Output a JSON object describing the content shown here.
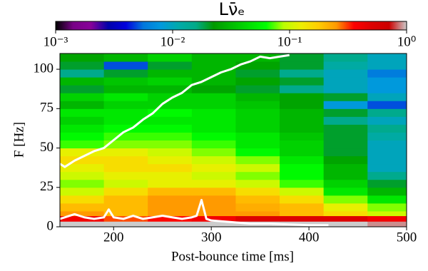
{
  "chart_data": {
    "type": "heatmap",
    "title": "Lν̄ₑ",
    "x_label": "Post-bounce time [ms]",
    "y_label": "F [Hz]",
    "xlim": [
      145,
      500
    ],
    "xticks": [
      200,
      300,
      400,
      500
    ],
    "ylim": [
      0,
      110
    ],
    "yticks": [
      0,
      25,
      50,
      75,
      100
    ],
    "xbins": [
      145,
      190,
      235,
      280,
      325,
      370,
      415,
      460,
      500
    ],
    "ybins": [
      0,
      3.5,
      7,
      10,
      15,
      20,
      25,
      30,
      35,
      40,
      45,
      50,
      55,
      60,
      65,
      70,
      75,
      80,
      85,
      90,
      95,
      100,
      105,
      110
    ],
    "z": [
      [
        1,
        1,
        1,
        1,
        1,
        1,
        1,
        0.9
      ],
      [
        0.4,
        0.3,
        0.35,
        0.4,
        0.5,
        0.5,
        0.5,
        0.4
      ],
      [
        0.25,
        0.2,
        0.25,
        0.25,
        0.25,
        0.2,
        0.15,
        0.1
      ],
      [
        0.2,
        0.2,
        0.25,
        0.25,
        0.22,
        0.2,
        0.12,
        0.08
      ],
      [
        0.15,
        0.2,
        0.25,
        0.25,
        0.2,
        0.15,
        0.08,
        0.05
      ],
      [
        0.1,
        0.15,
        0.2,
        0.2,
        0.15,
        0.1,
        0.05,
        0.03
      ],
      [
        0.08,
        0.1,
        0.12,
        0.12,
        0.1,
        0.07,
        0.04,
        0.02
      ],
      [
        0.1,
        0.12,
        0.12,
        0.1,
        0.08,
        0.06,
        0.03,
        0.015
      ],
      [
        0.12,
        0.15,
        0.15,
        0.12,
        0.1,
        0.06,
        0.03,
        0.01
      ],
      [
        0.15,
        0.15,
        0.12,
        0.1,
        0.08,
        0.05,
        0.025,
        0.01
      ],
      [
        0.12,
        0.12,
        0.1,
        0.08,
        0.06,
        0.04,
        0.02,
        0.01
      ],
      [
        0.07,
        0.08,
        0.08,
        0.07,
        0.05,
        0.04,
        0.02,
        0.01
      ],
      [
        0.06,
        0.07,
        0.07,
        0.06,
        0.05,
        0.035,
        0.02,
        0.012
      ],
      [
        0.05,
        0.06,
        0.06,
        0.05,
        0.04,
        0.03,
        0.02,
        0.015
      ],
      [
        0.04,
        0.05,
        0.05,
        0.05,
        0.04,
        0.03,
        0.015,
        0.01
      ],
      [
        0.05,
        0.05,
        0.06,
        0.05,
        0.04,
        0.03,
        0.02,
        0.015
      ],
      [
        0.03,
        0.04,
        0.04,
        0.04,
        0.035,
        0.025,
        0.008,
        0.005
      ],
      [
        0.04,
        0.05,
        0.04,
        0.04,
        0.03,
        0.025,
        0.02,
        0.01
      ],
      [
        0.02,
        0.03,
        0.03,
        0.025,
        0.02,
        0.015,
        0.01,
        0.008
      ],
      [
        0.03,
        0.035,
        0.04,
        0.03,
        0.025,
        0.02,
        0.01,
        0.008
      ],
      [
        0.015,
        0.02,
        0.03,
        0.03,
        0.02,
        0.015,
        0.01,
        0.006
      ],
      [
        0.02,
        0.005,
        0.02,
        0.03,
        0.025,
        0.02,
        0.012,
        0.01
      ],
      [
        0.025,
        0.03,
        0.04,
        0.03,
        0.03,
        0.02,
        0.015,
        0.01
      ]
    ],
    "clim": [
      0.001,
      1
    ],
    "cticks": [
      {
        "value": 0.001,
        "label": "10⁻³"
      },
      {
        "value": 0.01,
        "label": "10⁻²"
      },
      {
        "value": 0.1,
        "label": "10⁻¹"
      },
      {
        "value": 1,
        "label": "10⁰"
      }
    ],
    "colormap": [
      "#000000",
      "#780087",
      "#880099",
      "#0000aa",
      "#0000dd",
      "#0077dd",
      "#0099dd",
      "#00aaaa",
      "#00aa88",
      "#009900",
      "#00bb00",
      "#00dd00",
      "#00ff00",
      "#bbff00",
      "#eeee00",
      "#ffcc00",
      "#ff9900",
      "#ff0000",
      "#dd0000",
      "#cc0000",
      "#cccccc"
    ],
    "lines": [
      {
        "color": "#ffffff",
        "x": [
          145,
          150,
          160,
          170,
          180,
          190,
          200,
          210,
          220,
          230,
          240,
          250,
          260,
          270,
          280,
          290,
          300,
          310,
          320,
          330,
          340,
          350,
          360,
          370,
          380
        ],
        "y": [
          40,
          38,
          42,
          45,
          48,
          50,
          55,
          60,
          63,
          68,
          72,
          78,
          82,
          85,
          90,
          92,
          95,
          98,
          100,
          103,
          105,
          108,
          107,
          108,
          109
        ]
      },
      {
        "color": "#ffffff",
        "x": [
          145,
          160,
          170,
          180,
          190,
          195,
          200,
          210,
          220,
          230,
          240,
          250,
          260,
          270,
          280,
          285,
          290,
          295,
          300,
          320,
          340,
          360,
          380,
          400,
          420
        ],
        "y": [
          5,
          8,
          6,
          5,
          6,
          11,
          6,
          5,
          7,
          5,
          6,
          7,
          6,
          5,
          6,
          7,
          17,
          5,
          4,
          3,
          2,
          2,
          1.5,
          1,
          1
        ]
      }
    ]
  }
}
